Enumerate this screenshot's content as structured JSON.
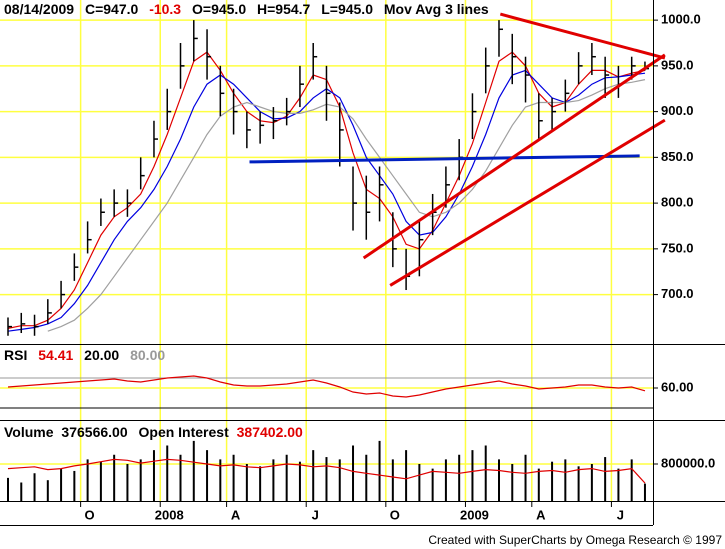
{
  "chart_data": [
    {
      "type": "ohlc",
      "header": {
        "date": "08/14/2009",
        "close": "C=947.0",
        "change": "-10.3",
        "open": "O=945.0",
        "high": "H=954.7",
        "low": "L=945.0",
        "study": "Mov Avg 3 lines"
      },
      "categories": [
        null,
        null,
        null,
        null,
        null,
        null,
        "O",
        null,
        null,
        null,
        null,
        null,
        "2008",
        null,
        null,
        null,
        null,
        "A",
        null,
        null,
        null,
        null,
        null,
        "J",
        null,
        null,
        null,
        null,
        null,
        "O",
        null,
        null,
        null,
        null,
        null,
        "2009",
        null,
        null,
        null,
        null,
        "A",
        null,
        null,
        null,
        null,
        null,
        "J",
        null,
        null
      ],
      "high": [
        675,
        680,
        678,
        695,
        715,
        745,
        780,
        805,
        815,
        815,
        850,
        890,
        925,
        975,
        1000,
        990,
        950,
        925,
        900,
        900,
        905,
        915,
        950,
        975,
        950,
        910,
        840,
        830,
        840,
        790,
        750,
        780,
        810,
        840,
        870,
        920,
        970,
        1000,
        985,
        960,
        920,
        915,
        935,
        965,
        975,
        960,
        950,
        960,
        954.7
      ],
      "low": [
        655,
        658,
        655,
        668,
        685,
        715,
        745,
        775,
        785,
        785,
        815,
        850,
        880,
        925,
        955,
        935,
        895,
        875,
        860,
        865,
        870,
        885,
        905,
        935,
        890,
        840,
        770,
        760,
        780,
        730,
        705,
        720,
        765,
        795,
        825,
        870,
        920,
        960,
        930,
        910,
        870,
        880,
        900,
        930,
        940,
        915,
        915,
        935,
        945
      ],
      "close": [
        665,
        668,
        665,
        680,
        700,
        730,
        760,
        790,
        800,
        800,
        830,
        870,
        900,
        950,
        980,
        960,
        920,
        900,
        880,
        885,
        890,
        900,
        930,
        960,
        920,
        880,
        800,
        790,
        820,
        750,
        720,
        760,
        790,
        820,
        850,
        900,
        950,
        990,
        960,
        940,
        890,
        900,
        920,
        950,
        960,
        940,
        930,
        950,
        947
      ],
      "bar_color": "#000000",
      "series": [
        {
          "color": "#e00000",
          "values": [
            663,
            666,
            666,
            672,
            685,
            705,
            735,
            765,
            785,
            795,
            810,
            840,
            875,
            915,
            955,
            965,
            945,
            920,
            900,
            890,
            888,
            895,
            915,
            940,
            935,
            905,
            855,
            815,
            805,
            785,
            755,
            750,
            770,
            800,
            830,
            865,
            910,
            955,
            965,
            950,
            920,
            905,
            910,
            930,
            945,
            945,
            938,
            942,
            945
          ]
        },
        {
          "color": "#0000e0",
          "values": [
            660,
            662,
            664,
            668,
            675,
            690,
            710,
            735,
            760,
            780,
            795,
            815,
            840,
            870,
            905,
            930,
            940,
            930,
            915,
            900,
            892,
            893,
            900,
            915,
            925,
            915,
            885,
            850,
            830,
            810,
            780,
            765,
            768,
            785,
            810,
            840,
            875,
            915,
            940,
            945,
            930,
            915,
            910,
            918,
            930,
            937,
            938,
            940,
            942
          ]
        },
        {
          "color": "#a0a0a0",
          "values": [
            null,
            null,
            null,
            660,
            665,
            672,
            685,
            700,
            720,
            740,
            760,
            780,
            800,
            825,
            850,
            875,
            895,
            905,
            910,
            905,
            900,
            898,
            898,
            902,
            908,
            905,
            892,
            870,
            850,
            830,
            810,
            790,
            785,
            790,
            800,
            815,
            835,
            860,
            885,
            905,
            910,
            910,
            910,
            912,
            918,
            925,
            930,
            932,
            935
          ]
        }
      ],
      "trendlines": [
        {
          "color": "#0020c0",
          "x": [
            18.2,
            47.6
          ],
          "y": [
            845,
            851.6
          ]
        },
        {
          "color": "#e00000",
          "x": [
            37.1,
            49.5
          ],
          "y": [
            1006.6,
            958.5
          ]
        },
        {
          "color": "#e00000",
          "x": [
            26.8,
            49.5
          ],
          "y": [
            740,
            962
          ]
        },
        {
          "color": "#e00000",
          "x": [
            28.8,
            49.5
          ],
          "y": [
            710,
            890.7
          ]
        }
      ],
      "ylim": [
        646,
        1022
      ],
      "yticks": [
        {
          "value": 1000,
          "label": "1000.0"
        },
        {
          "value": 950,
          "label": "950.0"
        },
        {
          "value": 900,
          "label": "900.0"
        },
        {
          "value": 850,
          "label": "850.0"
        },
        {
          "value": 800,
          "label": "800.0"
        },
        {
          "value": 750,
          "label": "750.0"
        },
        {
          "value": 700,
          "label": "700.0"
        }
      ],
      "grid": true,
      "grid_color": "#ffff40"
    },
    {
      "type": "line",
      "title": "RSI",
      "current": "54.41",
      "color": "#e00000",
      "values": [
        62,
        64,
        66,
        68,
        70,
        72,
        74,
        76,
        78,
        74,
        72,
        76,
        80,
        82,
        84,
        80,
        72,
        66,
        64,
        64,
        66,
        68,
        72,
        76,
        70,
        62,
        52,
        48,
        50,
        44,
        42,
        46,
        52,
        58,
        62,
        66,
        70,
        74,
        68,
        64,
        58,
        60,
        62,
        66,
        66,
        62,
        60,
        62,
        54.41
      ],
      "levels": [
        {
          "value": 20,
          "label": "20.00",
          "color": "#000000"
        },
        {
          "value": 80,
          "label": "80.00",
          "color": "#999999"
        }
      ],
      "ylim": [
        -4,
        146
      ],
      "yticks": [
        {
          "value": 60,
          "label": "60.00"
        }
      ]
    },
    {
      "type": "bar",
      "series": [
        {
          "name": "Volume",
          "current": "376566.00",
          "color": "#000000",
          "values": [
            500000,
            400000,
            600000,
            450000,
            700000,
            650000,
            900000,
            850000,
            1000000,
            800000,
            900000,
            1100000,
            1200000,
            1000000,
            1300000,
            1100000,
            900000,
            1000000,
            800000,
            750000,
            900000,
            1000000,
            850000,
            1100000,
            950000,
            900000,
            1200000,
            1000000,
            1300000,
            900000,
            1100000,
            800000,
            700000,
            900000,
            1000000,
            1100000,
            1200000,
            900000,
            800000,
            1000000,
            700000,
            850000,
            900000,
            750000,
            800000,
            950000,
            700000,
            900000,
            376566
          ]
        },
        {
          "name": "Open Interest",
          "current": "387402.00",
          "color": "#e00000",
          "values": [
            700000,
            720000,
            740000,
            680000,
            700000,
            760000,
            800000,
            850000,
            900000,
            880000,
            820000,
            860000,
            900000,
            880000,
            840000,
            800000,
            760000,
            780000,
            740000,
            720000,
            760000,
            800000,
            780000,
            740000,
            760000,
            720000,
            640000,
            600000,
            560000,
            520000,
            480000,
            560000,
            640000,
            620000,
            600000,
            640000,
            680000,
            660000,
            620000,
            600000,
            640000,
            660000,
            620000,
            680000,
            700000,
            640000,
            660000,
            700000,
            387402
          ]
        }
      ],
      "ylim": [
        0,
        1730000
      ],
      "yticks": [
        {
          "value": 800000,
          "label": "800000.0"
        }
      ]
    }
  ],
  "footer": "Created with SuperCharts by Omega Research © 1997"
}
